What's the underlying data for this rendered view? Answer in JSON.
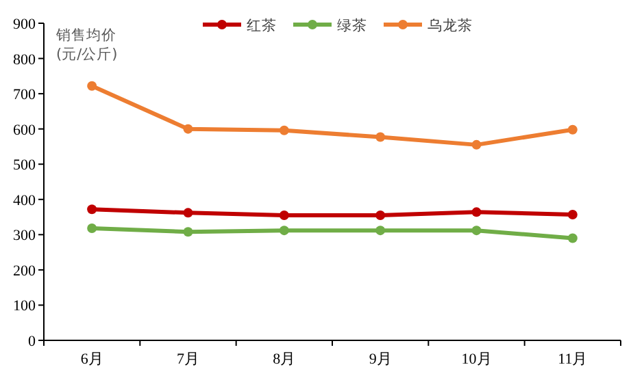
{
  "chart_data": {
    "type": "line",
    "ylabel": "销售均价\n(元/公斤)",
    "categories": [
      "6月",
      "7月",
      "8月",
      "9月",
      "10月",
      "11月"
    ],
    "series": [
      {
        "name": "红茶",
        "color": "#c00000",
        "values": [
          372,
          362,
          355,
          355,
          364,
          357
        ]
      },
      {
        "name": "绿茶",
        "color": "#70ad47",
        "values": [
          318,
          308,
          312,
          312,
          312,
          290
        ]
      },
      {
        "name": "乌龙茶",
        "color": "#ed7d31",
        "values": [
          722,
          600,
          596,
          577,
          555,
          598
        ]
      }
    ],
    "ylim": [
      0,
      900
    ],
    "yticks": [
      0,
      100,
      200,
      300,
      400,
      500,
      600,
      700,
      800,
      900
    ],
    "grid": false,
    "legend": "top",
    "marker": "circle",
    "line_style": "solid"
  }
}
